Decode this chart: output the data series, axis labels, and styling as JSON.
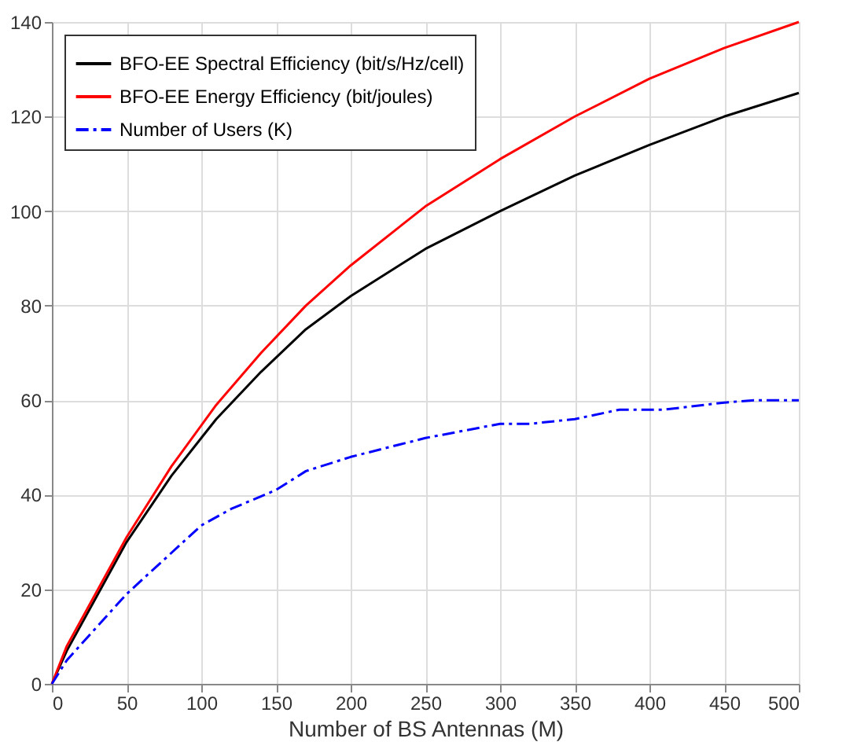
{
  "chart_data": {
    "type": "line",
    "xlabel": "Number of BS Antennas (M)",
    "x": [
      0,
      10,
      50,
      80,
      110,
      140,
      170,
      200,
      250,
      300,
      350,
      400,
      450,
      500
    ],
    "series": [
      {
        "name": "BFO-EE Spectral Efficiency (bit/s/Hz/cell)",
        "color": "#000000",
        "line_style": "solid",
        "values": [
          0,
          7,
          30,
          44,
          56,
          66,
          75,
          82,
          92,
          100,
          107.5,
          114,
          120,
          125
        ]
      },
      {
        "name": "BFO-EE Energy Efficiency (bit/joules)",
        "color": "#ff0000",
        "line_style": "solid",
        "values": [
          0,
          8,
          31,
          46,
          59,
          70,
          80,
          88.5,
          101,
          111,
          120,
          128,
          134.5,
          140
        ]
      },
      {
        "name": "Number of Users (K)",
        "color": "#0000ff",
        "line_style": "dashed",
        "x": [
          0,
          10,
          50,
          100,
          120,
          150,
          170,
          200,
          250,
          300,
          320,
          350,
          380,
          410,
          450,
          470,
          500
        ],
        "values": [
          0,
          5,
          19,
          33.5,
          37,
          41,
          45,
          48,
          52,
          55,
          55,
          56,
          58,
          58,
          59.5,
          60,
          60
        ]
      }
    ],
    "xlim": [
      0,
      500
    ],
    "ylim": [
      0,
      140
    ],
    "xticks": [
      0,
      50,
      100,
      150,
      200,
      250,
      300,
      350,
      400,
      450,
      500
    ],
    "yticks": [
      0,
      20,
      40,
      60,
      80,
      100,
      120,
      140
    ],
    "grid": true,
    "legend": "top left",
    "marker": "none"
  }
}
